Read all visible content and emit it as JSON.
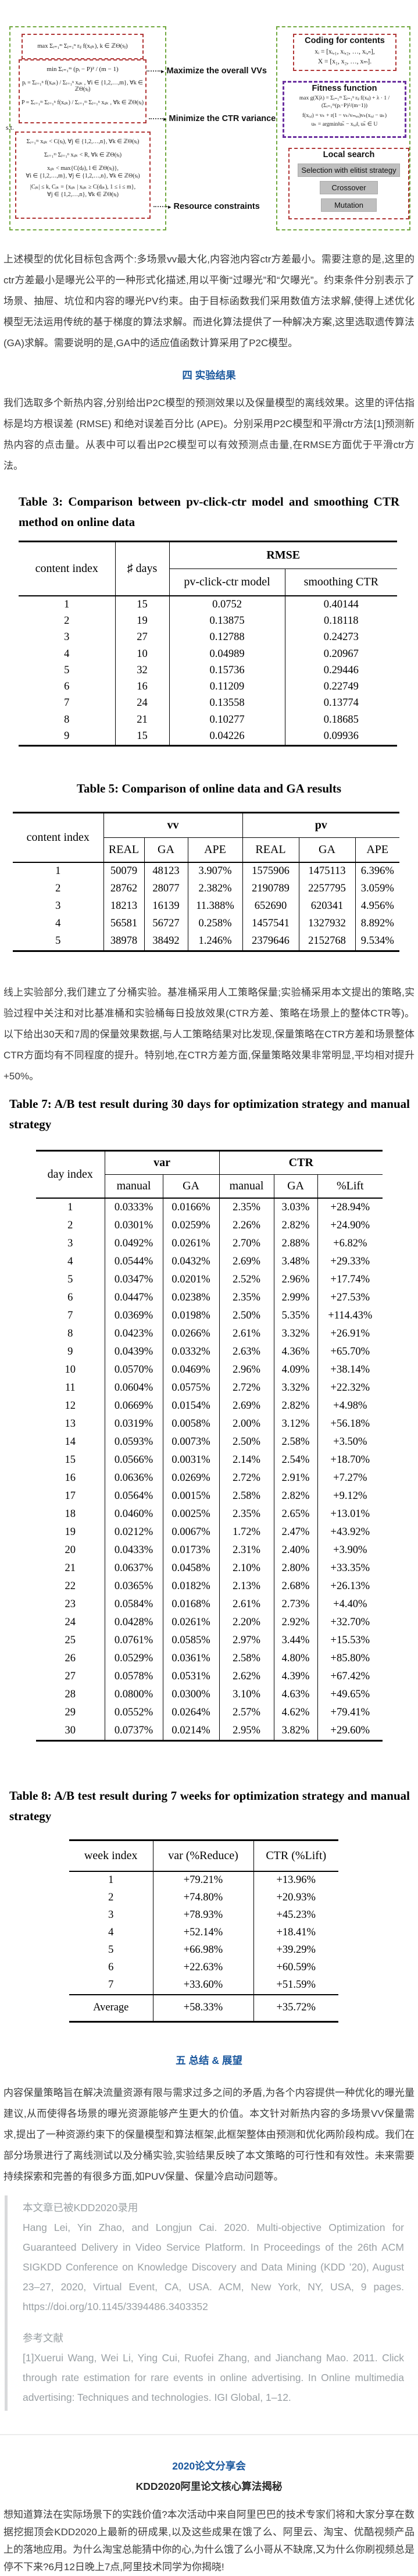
{
  "figure": {
    "left": {
      "objective1": "max Σᵢ₌₁ᵐ Σⱼ₌₁ⁿ rᵢⱼ f(xᵢⱼₖ), k ∈ ℤΘ(sⱼ)",
      "min_line": "min  Σᵢ₌₁ᵐ (pᵢ − P)² / (m − 1)",
      "p_line": "pᵢ = Σⱼ₌₁ⁿ f(xᵢⱼₖ) / Σⱼ₌₁ⁿ xᵢⱼₖ ,  ∀i ∈ {1,2,…,m}, ∀k ∈ ℤΘ(sⱼ)",
      "P_line": "P = Σᵢ₌₁ᵐ Σⱼ₌₁ⁿ f(xᵢⱼₖ) / Σᵢ₌₁ᵐ Σⱼ₌₁ⁿ xᵢⱼₖ ,  ∀k ∈ ℤΘ(sⱼ)",
      "st": "s.t.",
      "c1": "Σᵢ₌₁ᵐ xᵢⱼₖ < C(sⱼ), ∀j ∈ {1,2,…,n}, ∀k ∈ ℤΘ(sⱼ)",
      "c2": "Σᵢ₌₁ᵐ Σⱼ₌₁ⁿ xᵢⱼₖ < R, ∀k ∈ ℤΘ(sⱼ)",
      "c3": "xᵢⱼₖ < max{C(dⱼₗ), l ∈ ℤΘ(sⱼ)},",
      "c4": "∀i ∈ {1,2,…,m}, ∀j ∈ {1,2,…,n}, ∀k ∈ ℤΘ(sⱼ)",
      "c5": "|Cⱼₖ| ≤ k, Cⱼₖ = {xᵢⱼₖ | xᵢⱼₖ ≥ C(dⱼₖ), 1 ≤ i ≤ m},",
      "c6": "∀j ∈ {1,2,…,n}, ∀k ∈ ℤΘ(sⱼ)"
    },
    "labels": {
      "maximize": "Maximize the overall VVs",
      "minimize": "Minimize the CTR variance",
      "resource": "Resource constraints"
    },
    "right": {
      "coding_title": "Coding for contents",
      "coding1": "xᵢ = [xᵢ,₁, xᵢ,₂, …, xᵢ,ₙ],",
      "coding2": "X = [x₁, x₂, …, xₘ].",
      "fitness_title": "Fitness function",
      "fitness1": "max g(X|λ) = Σᵢ₌₁ᵐ Σⱼ₌₁ⁿ rᵢⱼ f(xᵢⱼ) + λ · 1 / (Σᵢ₌₁ᵐ(pᵢ−P)²/(m−1))",
      "fitness2": "f(xᵢ,ⱼ) = vₖ + r(1 − vₖ/vₘₐₓ)vₖ(xᵢ,ⱼ − uₖ)",
      "fitness3": "uₖ = argmin‖uₖ̃ − xᵢ,ⱼ‖, uₖ̃ ∈ U",
      "local_title": "Local search",
      "buttons": [
        "Selection with elitist strategy",
        "Crossover",
        "Mutation"
      ]
    }
  },
  "headings": {
    "sec4": "四  实验结果",
    "sec5": "五  总结 & 展望",
    "share": "2020论文分享会",
    "share_sub": "KDD2020阿里论文核心算法揭秘"
  },
  "paragraphs": {
    "p1": "上述模型的优化目标包含两个:多场景vv最大化,内容池内容ctr方差最小。需要注意的是,这里的ctr方差最小是曝光公平的一种形式化描述,用以平衡“过曝光”和“欠曝光”。约束条件分别表示了场景、抽屉、坑位和内容的曝光PV约束。由于目标函数我们采用数值方法求解,使得上述优化模型无法运用传统的基于梯度的算法求解。而进化算法提供了一种解决方案,这里选取遗传算法(GA)求解。需要说明的是,GA中的适应值函数计算采用了P2C模型。",
    "p2": "我们选取多个新热内容,分别给出P2C模型的预测效果以及保量模型的离线效果。这里的评估指标是均方根误差 (RMSE) 和绝对误差百分比 (APE)。分别采用P2C模型和平滑ctr方法[1]预测新热内容的点击量。从表中可以看出P2C模型可以有效预测点击量,在RMSE方面优于平滑ctr方法。",
    "p3": "线上实验部分,我们建立了分桶实验。基准桶采用人工策略保量;实验桶采用本文提出的策略,实验过程中关注和对比基准桶和实验桶每日投放效果(CTR方差、策略在场景上的整体CTR等)。以下给出30天和7周的保量效果数据,与人工策略结果对比发现,保量策略在CTR方差和场景整体CTR方面均有不同程度的提升。特别地,在CTR方差方面,保量策略效果非常明显,平均相对提升+50%。",
    "p4": "内容保量策略旨在解决流量资源有限与需求过多之间的矛盾,为各个内容提供一种优化的曝光量建议,从而使得各场景的曝光资源能够产生更大的价值。本文针对新热内容的多场景VV保量需求,提出了一种资源约束下的保量模型和算法框架,此框架整体由预测和优化两阶段构成。我们在部分场景进行了离线测试以及分桶实验,实验结果反映了本文策略的可行性和有效性。未来需要持续探索和完善的有很多方面,如PUV保量、保量冷启动问题等。",
    "footer": "想知道算法在实际场景下的实践价值?本次活动中来自阿里巴巴的技术专家们将和大家分享在数据挖掘顶会KDD2020上最新的研成果,以及这些成果在饿了么、阿里云、淘宝、优酷视频产品上的落地应用。为什么淘宝总能猜中你的心,为什么饿了么小哥从不缺席,又为什么你刷视频总是停不下来?6月12日晚上7点,阿里技术同学为你揭晓!"
  },
  "quote": {
    "line1": "本文章已被KDD2020录用",
    "citation": "Hang Lei, Yin Zhao, and Longjun Cai. 2020. Multi-objective Optimization for Guaranteed Delivery in Video Service Platform. In Proceedings of the 26th ACM SIGKDD Conference on Knowledge Discovery and Data Mining (KDD ’20), August 23–27, 2020, Virtual Event, CA, USA. ACM, New York, NY, USA, 9 pages. https://doi.org/10.1145/3394486.3403352",
    "ref_title": "参考文献",
    "ref1": "[1]Xuerui Wang, Wei Li, Ying Cui, Ruofei Zhang, and Jianchang Mao. 2011. Click through rate estimation for rare events in online advertising. In Online multimedia advertising: Techniques and technologies. IGI Global, 1–12."
  },
  "table3": {
    "caption": "Table 3: Comparison between pv-click-ctr model and smoothing CTR method on online data",
    "col1": "content index",
    "col2": "♯ days",
    "group": "RMSE",
    "sub1": "pv-click-ctr model",
    "sub2": "smoothing CTR",
    "rows": [
      [
        "1",
        "15",
        "0.0752",
        "0.40144"
      ],
      [
        "2",
        "19",
        "0.13875",
        "0.18118"
      ],
      [
        "3",
        "27",
        "0.12788",
        "0.24273"
      ],
      [
        "4",
        "10",
        "0.04989",
        "0.20967"
      ],
      [
        "5",
        "32",
        "0.15736",
        "0.29446"
      ],
      [
        "6",
        "16",
        "0.11209",
        "0.22749"
      ],
      [
        "7",
        "24",
        "0.13558",
        "0.13774"
      ],
      [
        "8",
        "21",
        "0.10277",
        "0.18685"
      ],
      [
        "9",
        "15",
        "0.04226",
        "0.09936"
      ]
    ]
  },
  "table5": {
    "caption": "Table 5: Comparison of online data and GA results",
    "col1": "content index",
    "group1": "vv",
    "group2": "pv",
    "sub1": "REAL",
    "sub2": "GA",
    "sub3": "APE",
    "sub4": "REAL",
    "sub5": "GA",
    "sub6": "APE",
    "rows": [
      [
        "1",
        "50079",
        "48123",
        "3.907%",
        "1575906",
        "1475113",
        "6.396%"
      ],
      [
        "2",
        "28762",
        "28077",
        "2.382%",
        "2190789",
        "2257795",
        "3.059%"
      ],
      [
        "3",
        "18213",
        "16139",
        "11.388%",
        "652690",
        "620341",
        "4.956%"
      ],
      [
        "4",
        "56581",
        "56727",
        "0.258%",
        "1457541",
        "1327932",
        "8.892%"
      ],
      [
        "5",
        "38978",
        "38492",
        "1.246%",
        "2379646",
        "2152768",
        "9.534%"
      ]
    ]
  },
  "table7": {
    "caption": "Table 7: A/B test result during 30 days for optimization strategy and manual strategy",
    "col1": "day index",
    "group1": "var",
    "group2": "CTR",
    "sub1": "manual",
    "sub2": "GA",
    "sub3": "manual",
    "sub4": "GA",
    "sub5": "%Lift",
    "rows": [
      [
        "1",
        "0.0333%",
        "0.0166%",
        "2.35%",
        "3.03%",
        "+28.94%"
      ],
      [
        "2",
        "0.0301%",
        "0.0259%",
        "2.26%",
        "2.82%",
        "+24.90%"
      ],
      [
        "3",
        "0.0492%",
        "0.0261%",
        "2.70%",
        "2.88%",
        "+6.82%"
      ],
      [
        "4",
        "0.0544%",
        "0.0432%",
        "2.69%",
        "3.48%",
        "+29.33%"
      ],
      [
        "5",
        "0.0347%",
        "0.0201%",
        "2.52%",
        "2.96%",
        "+17.74%"
      ],
      [
        "6",
        "0.0447%",
        "0.0238%",
        "2.35%",
        "2.99%",
        "+27.53%"
      ],
      [
        "7",
        "0.0369%",
        "0.0198%",
        "2.50%",
        "5.35%",
        "+114.43%"
      ],
      [
        "8",
        "0.0423%",
        "0.0266%",
        "2.61%",
        "3.32%",
        "+26.91%"
      ],
      [
        "9",
        "0.0439%",
        "0.0332%",
        "2.63%",
        "4.36%",
        "+65.70%"
      ],
      [
        "10",
        "0.0570%",
        "0.0469%",
        "2.96%",
        "4.09%",
        "+38.14%"
      ],
      [
        "11",
        "0.0604%",
        "0.0575%",
        "2.72%",
        "3.32%",
        "+22.32%"
      ],
      [
        "12",
        "0.0669%",
        "0.0154%",
        "2.69%",
        "2.82%",
        "+4.98%"
      ],
      [
        "13",
        "0.0319%",
        "0.0058%",
        "2.00%",
        "3.12%",
        "+56.18%"
      ],
      [
        "14",
        "0.0593%",
        "0.0073%",
        "2.50%",
        "2.58%",
        "+3.50%"
      ],
      [
        "15",
        "0.0566%",
        "0.0031%",
        "2.14%",
        "2.54%",
        "+18.70%"
      ],
      [
        "16",
        "0.0636%",
        "0.0269%",
        "2.72%",
        "2.91%",
        "+7.27%"
      ],
      [
        "17",
        "0.0564%",
        "0.0015%",
        "2.58%",
        "2.82%",
        "+9.12%"
      ],
      [
        "18",
        "0.0460%",
        "0.0025%",
        "2.35%",
        "2.65%",
        "+13.01%"
      ],
      [
        "19",
        "0.0212%",
        "0.0067%",
        "1.72%",
        "2.47%",
        "+43.92%"
      ],
      [
        "20",
        "0.0433%",
        "0.0173%",
        "2.31%",
        "2.40%",
        "+3.90%"
      ],
      [
        "21",
        "0.0637%",
        "0.0458%",
        "2.10%",
        "2.80%",
        "+33.35%"
      ],
      [
        "22",
        "0.0365%",
        "0.0182%",
        "2.13%",
        "2.68%",
        "+26.13%"
      ],
      [
        "23",
        "0.0584%",
        "0.0168%",
        "2.61%",
        "2.73%",
        "+4.40%"
      ],
      [
        "24",
        "0.0428%",
        "0.0261%",
        "2.20%",
        "2.92%",
        "+32.70%"
      ],
      [
        "25",
        "0.0761%",
        "0.0585%",
        "2.97%",
        "3.44%",
        "+15.53%"
      ],
      [
        "26",
        "0.0529%",
        "0.0361%",
        "2.58%",
        "4.80%",
        "+85.80%"
      ],
      [
        "27",
        "0.0578%",
        "0.0531%",
        "2.62%",
        "4.39%",
        "+67.42%"
      ],
      [
        "28",
        "0.0800%",
        "0.0300%",
        "3.10%",
        "4.63%",
        "+49.65%"
      ],
      [
        "29",
        "0.0552%",
        "0.0264%",
        "2.57%",
        "4.62%",
        "+79.41%"
      ],
      [
        "30",
        "0.0737%",
        "0.0214%",
        "2.95%",
        "3.82%",
        "+29.60%"
      ]
    ]
  },
  "table8": {
    "caption": "Table 8: A/B test result during 7 weeks for optimization strategy and manual strategy",
    "col1": "week index",
    "col2": "var (%Reduce)",
    "col3": "CTR (%Lift)",
    "rows": [
      [
        "1",
        "+79.21%",
        "+13.96%"
      ],
      [
        "2",
        "+74.80%",
        "+20.93%"
      ],
      [
        "3",
        "+78.93%",
        "+45.23%"
      ],
      [
        "4",
        "+52.14%",
        "+18.41%"
      ],
      [
        "5",
        "+66.98%",
        "+39.29%"
      ],
      [
        "6",
        "+22.63%",
        "+60.59%"
      ],
      [
        "7",
        "+33.60%",
        "+51.59%"
      ]
    ],
    "average": [
      [
        "Average",
        "+58.33%",
        "+35.72%"
      ]
    ]
  },
  "colors": {
    "heading_blue": "#1a579d",
    "green_dash": "#71a83e",
    "red_dash": "#b03434",
    "purple_dash": "#6a2f9f",
    "button_gray": "#bfbfbf"
  }
}
